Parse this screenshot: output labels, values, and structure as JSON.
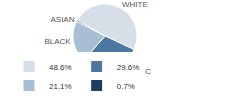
{
  "chart_data": {
    "type": "pie",
    "categories": [
      "WHITE",
      "HISPANIC",
      "BLACK",
      "ASIAN"
    ],
    "values": [
      48.6,
      29.6,
      21.1,
      0.7
    ],
    "value_labels": [
      "48.6%",
      "29.6%",
      "21.1%",
      "0.7%"
    ],
    "colors": [
      "#d6dee7",
      "#4d76a1",
      "#a8bed4",
      "#1f3d63"
    ],
    "legend": "bottom"
  }
}
